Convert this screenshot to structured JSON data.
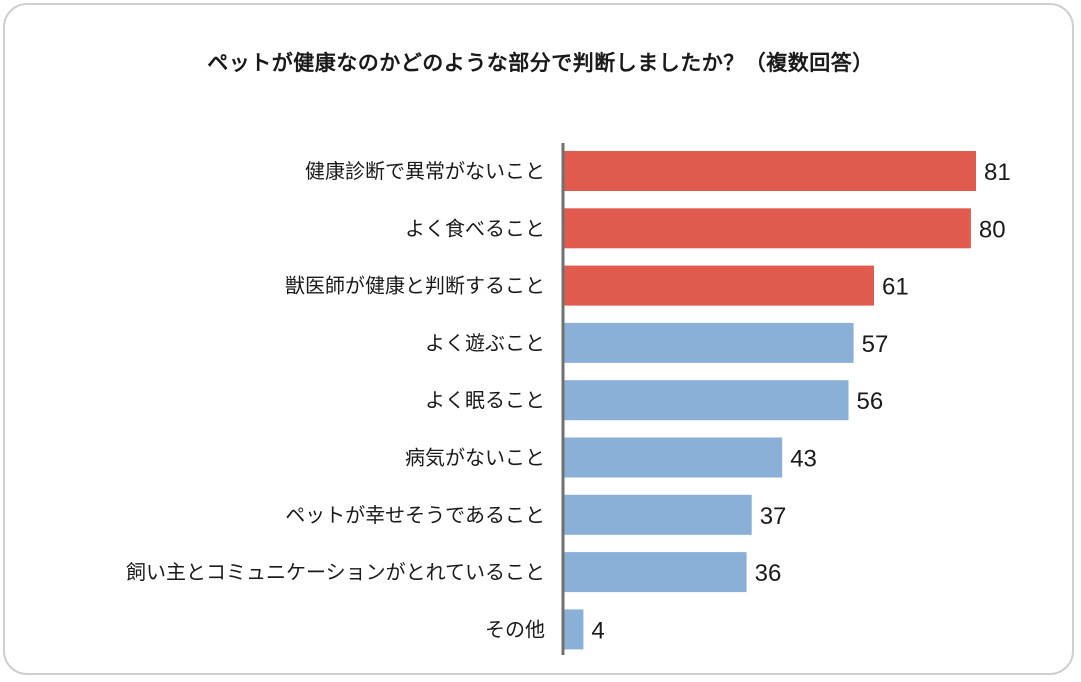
{
  "chart_data": {
    "type": "bar",
    "orientation": "horizontal",
    "title": "ペットが健康なのかどのような部分で判断しましたか？（複数回答）",
    "categories": [
      "健康診断で異常がないこと",
      "よく食べること",
      "獣医師が健康と判断すること",
      "よく遊ぶこと",
      "よく眠ること",
      "病気がないこと",
      "ペットが幸せそうであること",
      "飼い主とコミュニケーションがとれていること",
      "その他"
    ],
    "values": [
      81,
      80,
      61,
      57,
      56,
      43,
      37,
      36,
      4
    ],
    "value_labels": [
      "81",
      "80",
      "61",
      "57",
      "56",
      "43",
      "37",
      "36",
      "4"
    ],
    "highlight_count": 3,
    "colors": {
      "highlight": "#e05a4e",
      "default": "#8ab0d8",
      "axis": "#707070",
      "text": "#1a1a1a"
    },
    "xlim": [
      0,
      81
    ],
    "grid": false,
    "legend": "none"
  }
}
